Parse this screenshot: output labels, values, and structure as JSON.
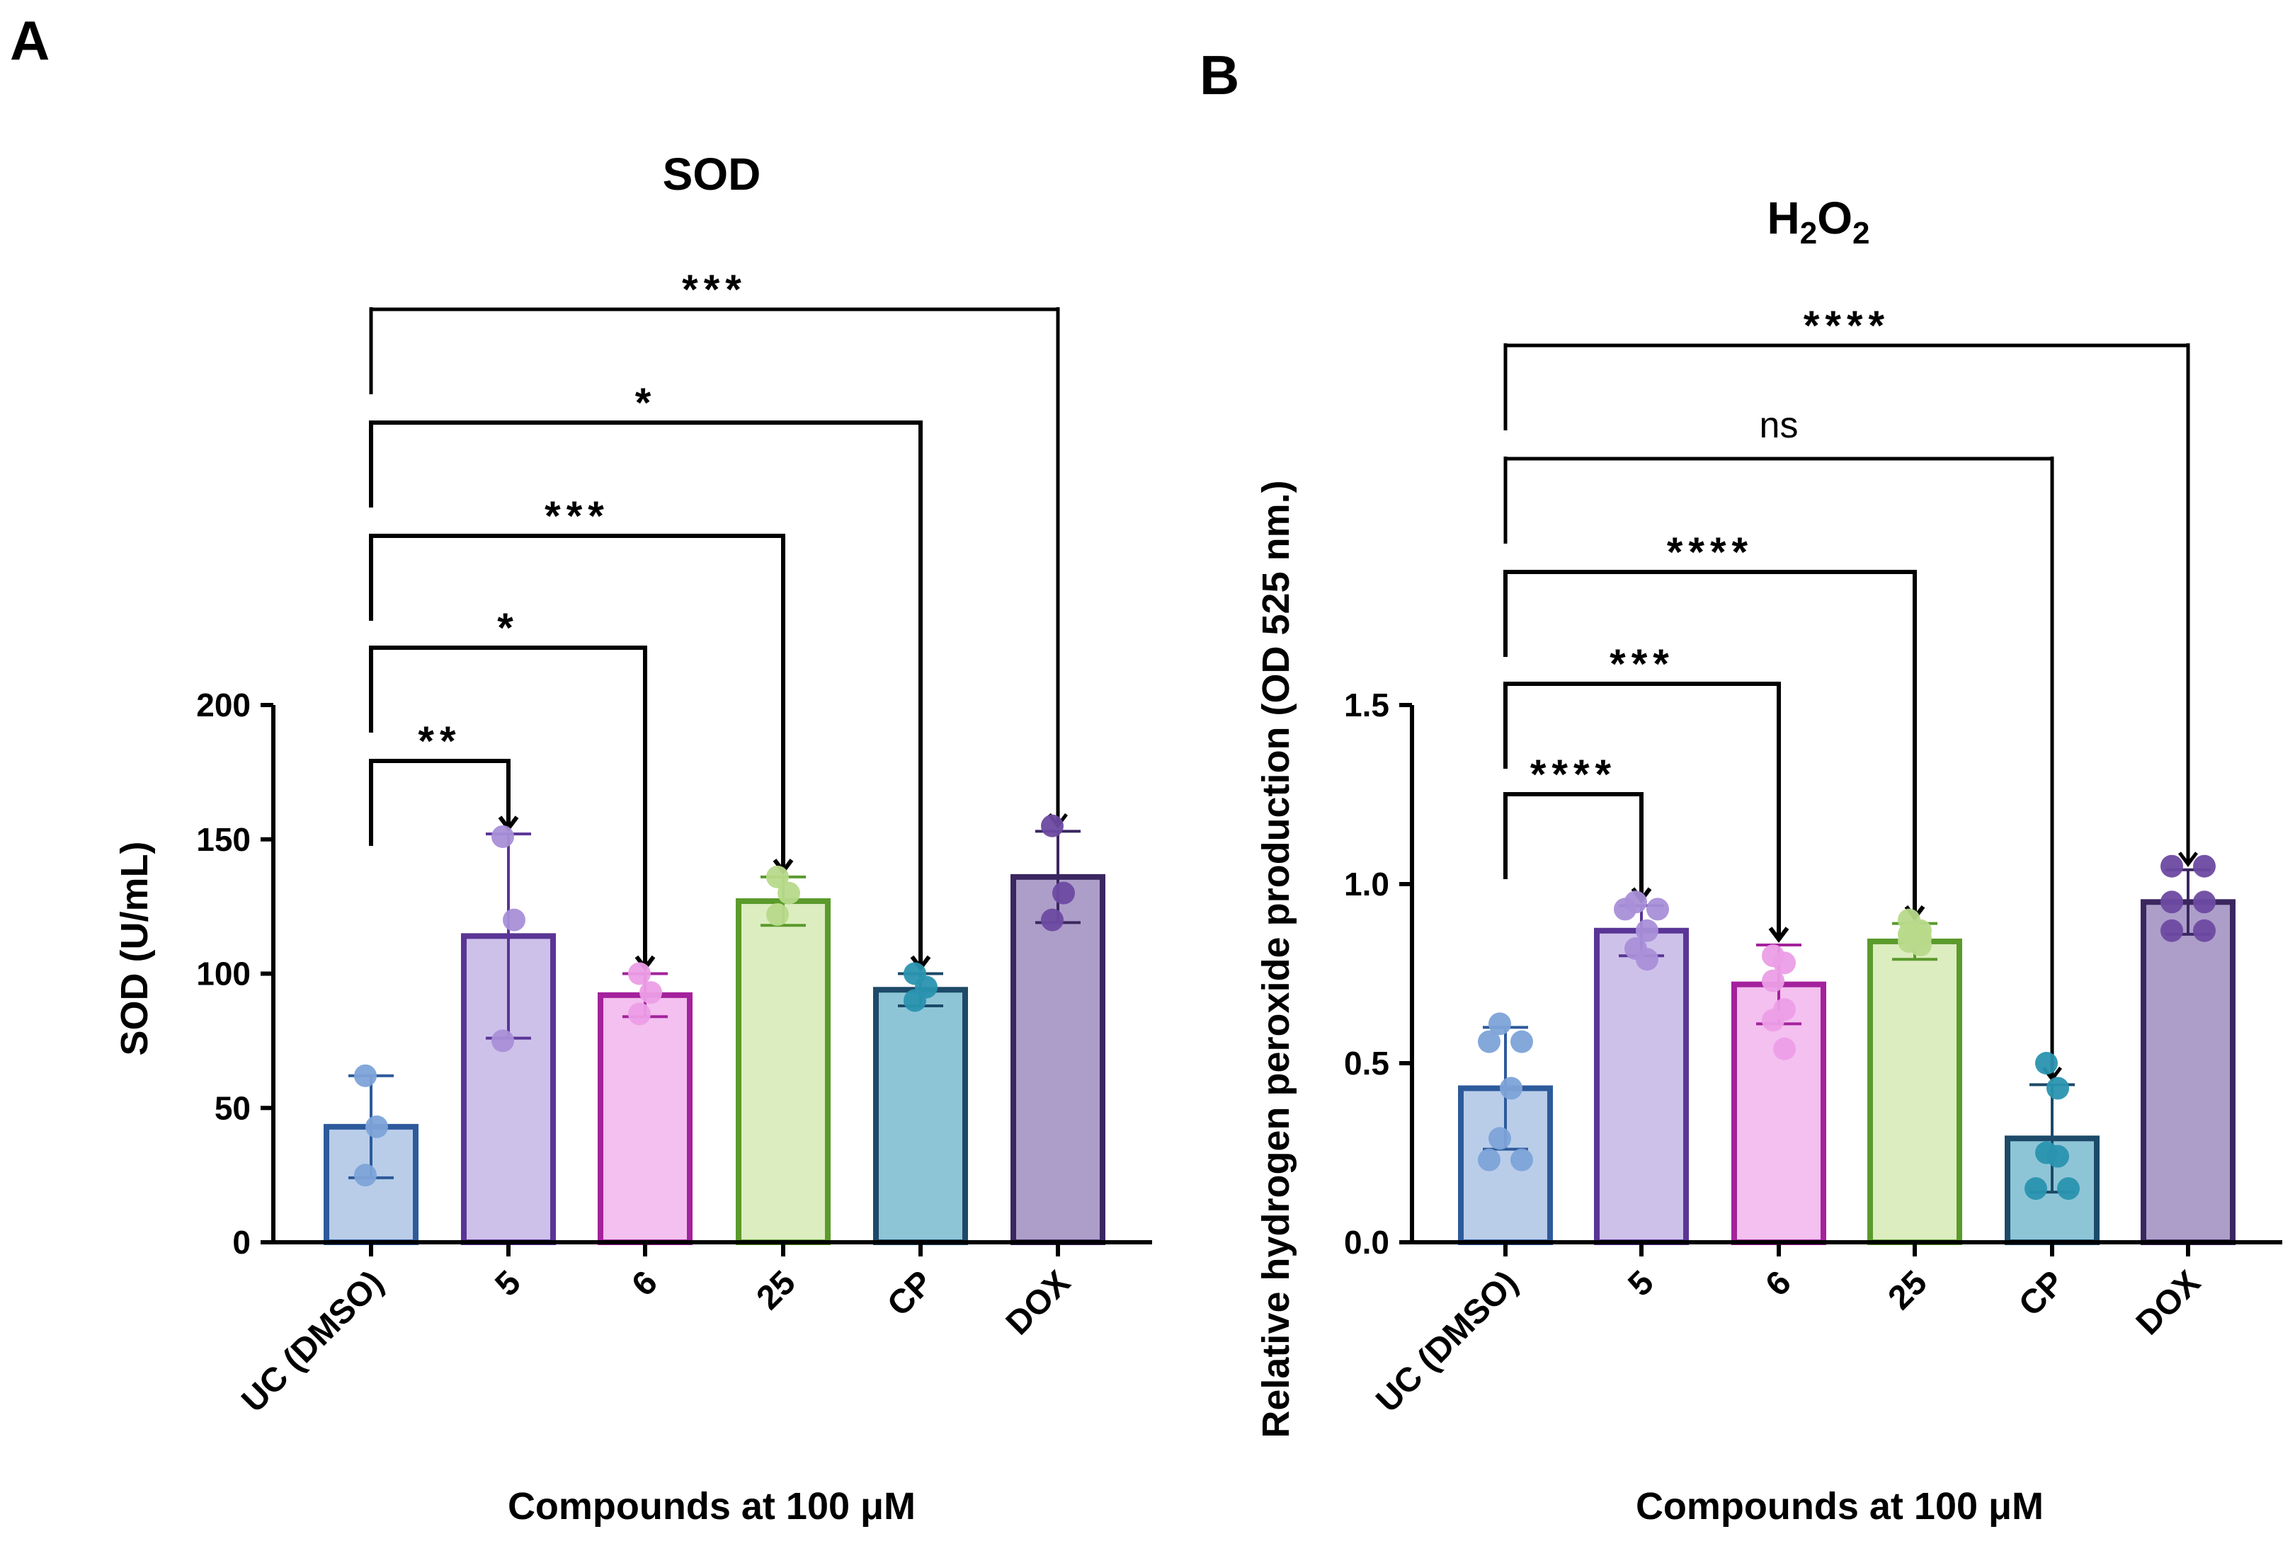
{
  "chart_data": [
    {
      "panel": "A",
      "type": "bar",
      "title": "SOD",
      "ylabel": "SOD (U/mL)",
      "xlabel": "Compounds at 100 μM",
      "ylim": [
        0,
        200
      ],
      "yticks": [
        0,
        50,
        100,
        150,
        200
      ],
      "tick_labels": [
        "0",
        "50",
        "100",
        "150",
        "200"
      ],
      "categories": [
        "UC (DMSO)",
        "5",
        "6",
        "25",
        "CP",
        "DOX"
      ],
      "values": [
        43,
        114,
        92,
        127,
        94,
        136
      ],
      "errors": [
        19,
        38,
        8,
        9,
        6,
        17
      ],
      "points": [
        [
          62,
          43,
          25
        ],
        [
          151,
          120,
          75
        ],
        [
          100,
          93,
          85
        ],
        [
          136,
          130,
          122
        ],
        [
          100,
          95,
          90
        ],
        [
          155,
          130,
          120
        ]
      ],
      "fill_colors": [
        "#b9cde9",
        "#cdc1ea",
        "#f3c0ef",
        "#dcedc0",
        "#8ec5d6",
        "#ad9ec9"
      ],
      "edge_colors": [
        "#2d5a9b",
        "#5a3595",
        "#a4229c",
        "#5b9a2c",
        "#1c4a68",
        "#3b2760"
      ],
      "point_colors": [
        "#7da3d8",
        "#a98fd8",
        "#ec9ee6",
        "#b7da8a",
        "#2a94b0",
        "#6d4aa2"
      ],
      "comparisons": [
        {
          "target": "DOX",
          "label": "***"
        },
        {
          "target": "CP",
          "label": "*"
        },
        {
          "target": "25",
          "label": "***"
        },
        {
          "target": "6",
          "label": "*"
        },
        {
          "target": "5",
          "label": "**"
        }
      ]
    },
    {
      "panel": "B",
      "type": "bar",
      "title": "H",
      "title_sub_1": "2",
      "title_mid": "O",
      "title_sub_2": "2",
      "ylabel": "Relative hydrogen peroxide production (OD 525 nm.)",
      "xlabel": "Compounds at 100 μM",
      "ylim": [
        0,
        1.5
      ],
      "yticks": [
        0,
        0.5,
        1.0,
        1.5
      ],
      "tick_labels": [
        "0.0",
        "0.5",
        "1.0",
        "1.5"
      ],
      "categories": [
        "UC (DMSO)",
        "5",
        "6",
        "25",
        "CP",
        "DOX"
      ],
      "values": [
        0.43,
        0.87,
        0.72,
        0.84,
        0.29,
        0.95
      ],
      "errors": [
        0.17,
        0.07,
        0.11,
        0.05,
        0.15,
        0.09
      ],
      "points": [
        [
          0.61,
          0.56,
          0.56,
          0.43,
          0.29,
          0.23,
          0.23
        ],
        [
          0.95,
          0.93,
          0.93,
          0.87,
          0.82,
          0.79
        ],
        [
          0.8,
          0.78,
          0.73,
          0.65,
          0.62,
          0.54
        ],
        [
          0.9,
          0.87,
          0.86,
          0.85,
          0.84,
          0.83
        ],
        [
          0.5,
          0.43,
          0.25,
          0.24,
          0.15,
          0.15
        ],
        [
          1.05,
          1.05,
          0.95,
          0.95,
          0.87,
          0.87
        ]
      ],
      "fill_colors": [
        "#b9cde9",
        "#cdc1ea",
        "#f3c0ef",
        "#dcedc0",
        "#8ec5d6",
        "#ad9ec9"
      ],
      "edge_colors": [
        "#2d5a9b",
        "#5a3595",
        "#a4229c",
        "#5b9a2c",
        "#1c4a68",
        "#3b2760"
      ],
      "point_colors": [
        "#7da3d8",
        "#a98fd8",
        "#ec9ee6",
        "#b7da8a",
        "#2a94b0",
        "#6d4aa2"
      ],
      "comparisons": [
        {
          "target": "DOX",
          "label": "****"
        },
        {
          "target": "CP",
          "label": "ns"
        },
        {
          "target": "25",
          "label": "****"
        },
        {
          "target": "6",
          "label": "***"
        },
        {
          "target": "5",
          "label": "****"
        }
      ]
    }
  ]
}
